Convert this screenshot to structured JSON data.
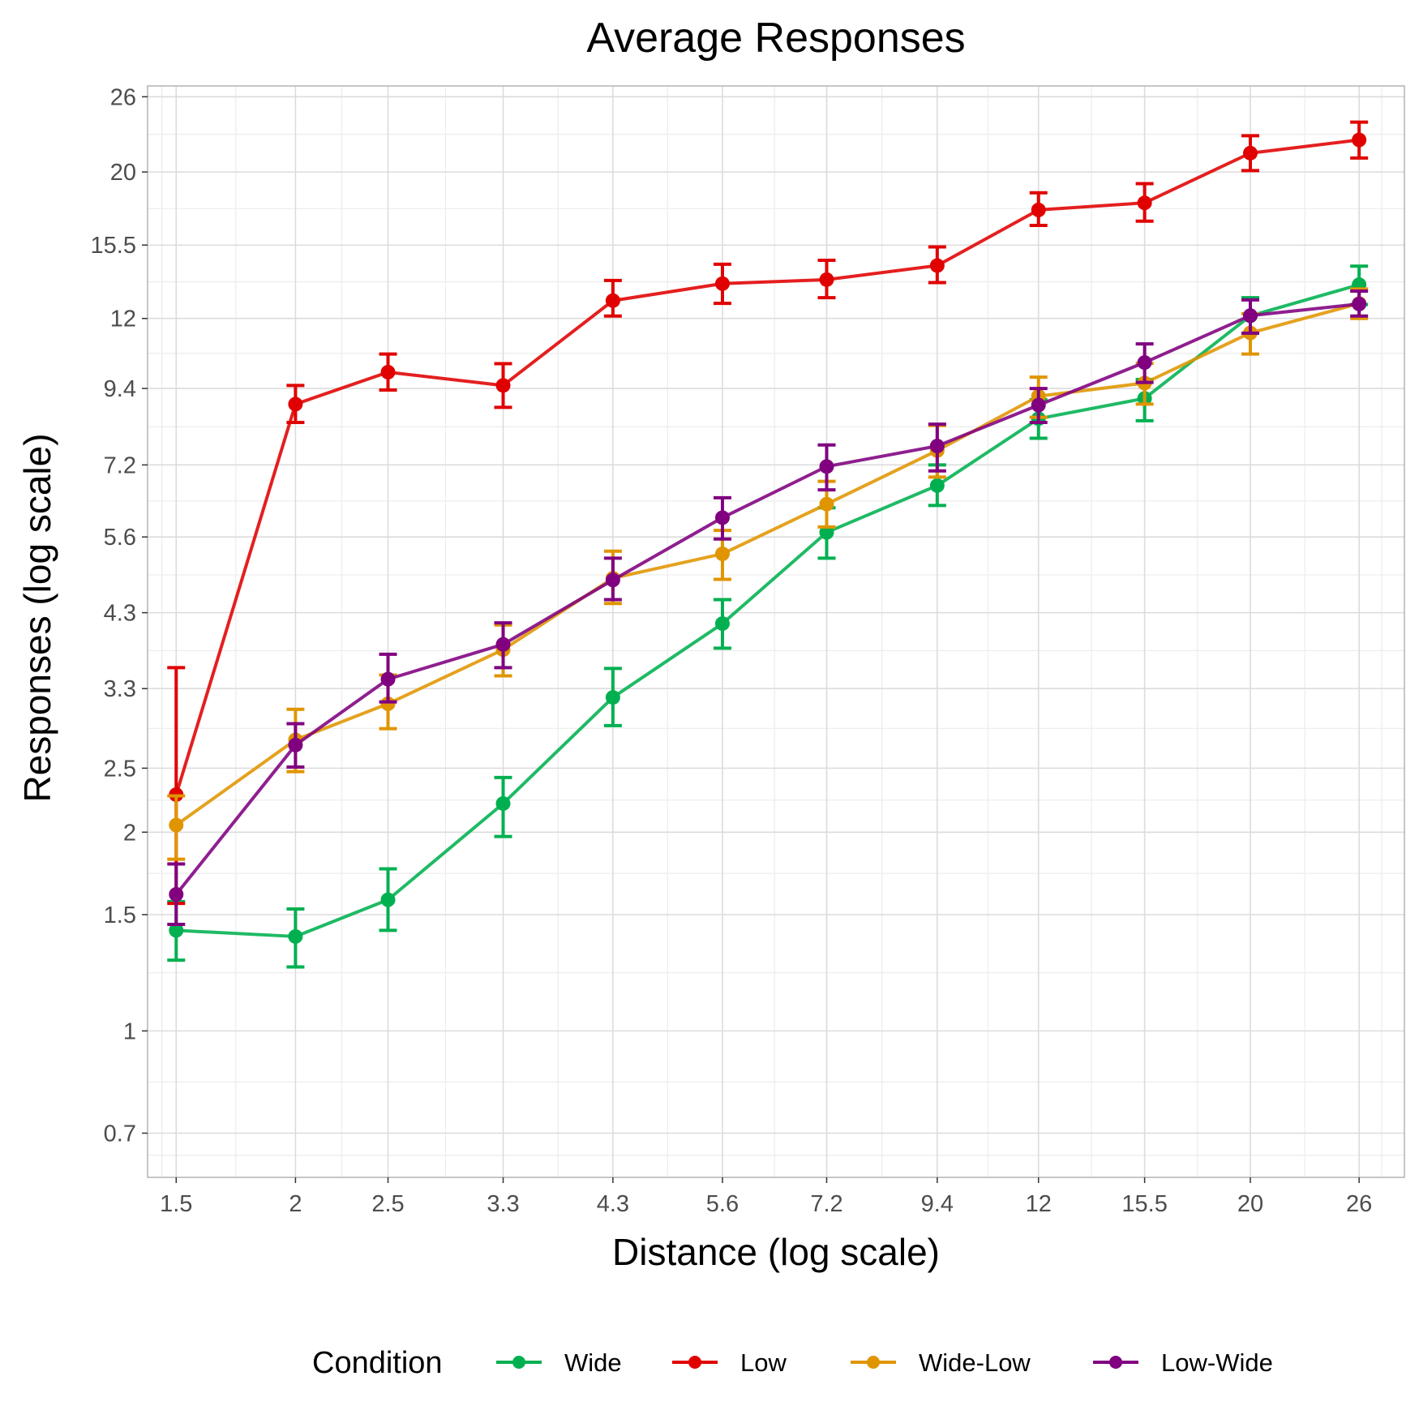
{
  "chart_data": {
    "type": "line",
    "title": "Average Responses",
    "xlabel": "Distance (log scale)",
    "ylabel": "Responses (log scale)",
    "x_scale": "log",
    "y_scale": "log",
    "x": [
      1.5,
      2,
      2.5,
      3.3,
      4.3,
      5.6,
      7.2,
      9.4,
      12,
      15.5,
      20,
      26
    ],
    "x_tick_labels": [
      "1.5",
      "2",
      "2.5",
      "3.3",
      "4.3",
      "5.6",
      "7.2",
      "9.4",
      "12",
      "15.5",
      "20",
      "26"
    ],
    "y_ticks": [
      0.7,
      1,
      1.5,
      2,
      2.5,
      3.3,
      4.3,
      5.6,
      7.2,
      9.4,
      12,
      15.5,
      20,
      26
    ],
    "y_tick_labels": [
      "0.7",
      "1",
      "1.5",
      "2",
      "2.5",
      "3.3",
      "4.3",
      "5.6",
      "7.2",
      "9.4",
      "12",
      "15.5",
      "20",
      "26"
    ],
    "xlim": [
      1.4,
      29
    ],
    "ylim": [
      0.6,
      27
    ],
    "grid": true,
    "legend": {
      "title": "Condition",
      "position": "bottom"
    },
    "series": [
      {
        "name": "Wide",
        "color": "#00b050",
        "values": [
          1.42,
          1.39,
          1.58,
          2.21,
          3.2,
          4.14,
          5.69,
          6.7,
          8.46,
          9.08,
          12.11,
          13.5
        ],
        "lower": [
          1.28,
          1.25,
          1.42,
          1.97,
          2.9,
          3.8,
          5.2,
          6.25,
          7.9,
          8.4,
          11.4,
          12.6
        ],
        "upper": [
          1.57,
          1.53,
          1.76,
          2.42,
          3.54,
          4.5,
          6.2,
          7.2,
          9.04,
          9.7,
          12.9,
          14.4
        ]
      },
      {
        "name": "Low",
        "color": "#e00000",
        "values": [
          2.28,
          8.9,
          9.95,
          9.5,
          12.77,
          13.55,
          13.74,
          14.43,
          17.52,
          17.96,
          21.36,
          22.37
        ],
        "lower": [
          1.56,
          8.35,
          9.35,
          8.8,
          12.1,
          12.65,
          12.9,
          13.6,
          16.6,
          16.85,
          20.1,
          21.0
        ],
        "upper": [
          3.55,
          9.5,
          10.6,
          10.25,
          13.7,
          14.5,
          14.7,
          15.4,
          18.6,
          19.2,
          22.7,
          23.8
        ]
      },
      {
        "name": "Wide-Low",
        "color": "#e09500",
        "values": [
          2.05,
          2.76,
          3.13,
          3.78,
          4.85,
          5.28,
          6.28,
          7.57,
          9.15,
          9.58,
          11.41,
          12.64
        ],
        "lower": [
          1.82,
          2.47,
          2.87,
          3.45,
          4.44,
          4.83,
          5.8,
          6.9,
          8.5,
          8.9,
          10.6,
          12.0
        ],
        "upper": [
          2.27,
          3.07,
          3.46,
          4.12,
          5.33,
          5.73,
          6.8,
          8.26,
          9.78,
          10.26,
          12.2,
          13.3
        ]
      },
      {
        "name": "Low-Wide",
        "color": "#800080",
        "values": [
          1.61,
          2.71,
          3.41,
          3.85,
          4.82,
          5.99,
          7.16,
          7.69,
          8.87,
          10.29,
          12.12,
          12.62
        ],
        "lower": [
          1.45,
          2.51,
          3.15,
          3.55,
          4.5,
          5.56,
          6.6,
          7.05,
          8.35,
          9.6,
          11.4,
          12.1
        ],
        "upper": [
          1.79,
          2.92,
          3.72,
          4.15,
          5.2,
          6.42,
          7.72,
          8.3,
          9.4,
          10.98,
          12.8,
          13.2
        ]
      }
    ]
  }
}
